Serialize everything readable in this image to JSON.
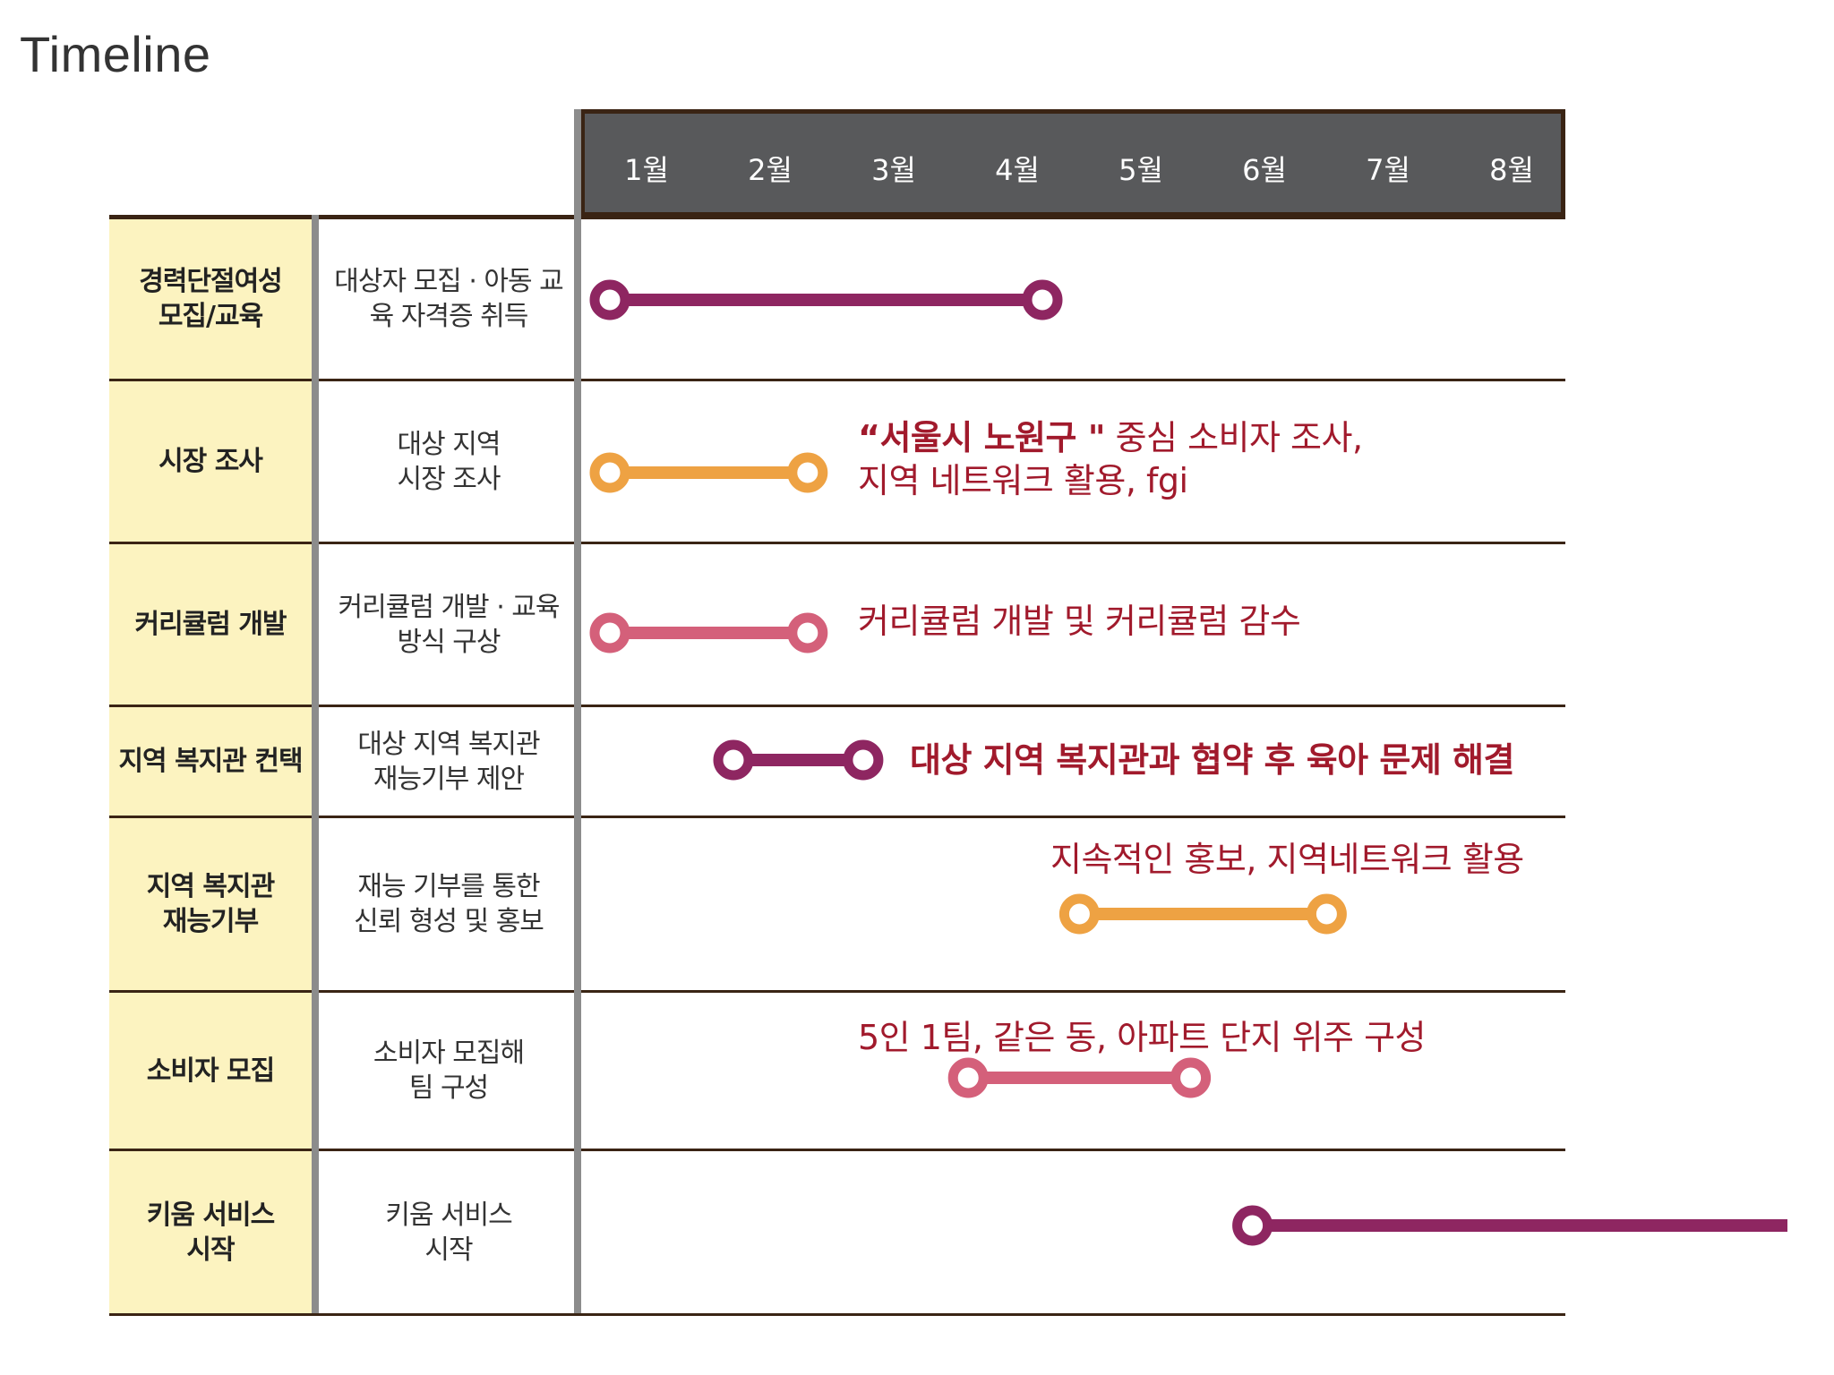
{
  "title": "Timeline",
  "months": [
    "1월",
    "2월",
    "3월",
    "4월",
    "5월",
    "6월",
    "7월",
    "8월"
  ],
  "rows": [
    {
      "category": "경력단절여성\n모집/교육",
      "description": "대상자 모집 · 아동 교\n육 자격증 취득",
      "note": "",
      "start_month": 1,
      "end_month": 4.5,
      "color": "#8e2661"
    },
    {
      "category": "시장 조사",
      "description": "대상 지역\n시장 조사",
      "note_bold": "“서울시 노원구 \"",
      "note": " 중심 소비자 조사,\n지역 네트워크 활용, fgi",
      "start_month": 1,
      "end_month": 2.6,
      "color": "#eea243"
    },
    {
      "category": "커리큘럼 개발",
      "description": "커리큘럼 개발 · 교육\n방식 구상",
      "note": "커리큘럼 개발 및 커리큘럼 감수",
      "start_month": 1,
      "end_month": 2.6,
      "color": "#d4607a"
    },
    {
      "category": "지역 복지관 컨택",
      "description": "대상 지역  복지관\n재능기부 제안",
      "note": "대상 지역 복지관과 협약 후 육아 문제 해결",
      "start_month": 2,
      "end_month": 3.05,
      "color": "#8e2661"
    },
    {
      "category": "지역 복지관\n재능기부",
      "description": "재능 기부를 통한\n신뢰 형성 및 홍보",
      "note": "지속적인 홍보, 지역네트워크 활용",
      "start_month": 4.8,
      "end_month": 6.8,
      "color": "#eea243"
    },
    {
      "category": "소비자 모집",
      "description": "소비자 모집해\n팀 구성",
      "note": "5인 1팀, 같은 동, 아파트 단지 위주 구성",
      "start_month": 3.9,
      "end_month": 5.7,
      "color": "#d4607a"
    },
    {
      "category": "키움 서비스\n시작",
      "description": "키움 서비스\n시작",
      "note": "",
      "start_month": 6.2,
      "end_month": 10.2,
      "open_end": true,
      "color": "#8e2661"
    }
  ],
  "colors": {
    "category_bg": "#fcf3c0",
    "header_bg": "#58595b",
    "border": "#3a2414",
    "note_text": "#a11a2c"
  }
}
